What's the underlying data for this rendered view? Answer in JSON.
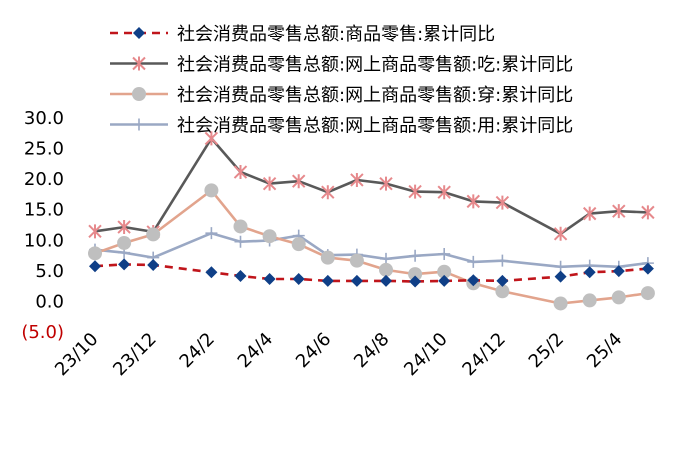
{
  "chart_data": {
    "type": "line",
    "title": "",
    "xlabel": "",
    "ylabel": "",
    "ylim": [
      -5,
      30
    ],
    "yticks": [
      {
        "value": 30,
        "label": "30.0"
      },
      {
        "value": 25,
        "label": "25.0"
      },
      {
        "value": 20,
        "label": "20.0"
      },
      {
        "value": 15,
        "label": "15.0"
      },
      {
        "value": 10,
        "label": "10.0"
      },
      {
        "value": 5,
        "label": "5.0"
      },
      {
        "value": 0,
        "label": "0.0"
      },
      {
        "value": -5,
        "label": "(5.0)"
      }
    ],
    "x": [
      "23/10",
      "23/11",
      "23/12",
      "24/1",
      "24/2",
      "24/3",
      "24/4",
      "24/5",
      "24/6",
      "24/7",
      "24/8",
      "24/9",
      "24/10",
      "24/11",
      "24/12",
      "25/1",
      "25/2",
      "25/3",
      "25/4",
      "25/5"
    ],
    "xtick_labels": [
      "23/10",
      "23/12",
      "24/2",
      "24/4",
      "24/6",
      "24/8",
      "24/10",
      "24/12",
      "25/2",
      "25/4"
    ],
    "grid": false,
    "legend_position": "top",
    "series": [
      {
        "name": "社会消费品零售总额:商品零售:累计同比",
        "color": "#0f3f87",
        "line_color": "#c0151b",
        "dashed": true,
        "marker": "diamond",
        "values": [
          5.6,
          5.9,
          5.8,
          null,
          4.6,
          4.0,
          3.5,
          3.5,
          3.2,
          3.2,
          3.2,
          3.1,
          3.2,
          3.3,
          3.2,
          null,
          3.9,
          4.6,
          4.8,
          5.2
        ]
      },
      {
        "name": "社会消费品零售总额:网上商品零售额:吃:累计同比",
        "color": "#e6898c",
        "line_color": "#595959",
        "dashed": false,
        "marker": "star",
        "values": [
          11.3,
          12.0,
          11.2,
          null,
          26.5,
          21.0,
          19.1,
          19.5,
          17.7,
          19.7,
          19.1,
          17.8,
          17.7,
          16.2,
          16.0,
          null,
          10.9,
          14.2,
          14.6,
          14.4
        ]
      },
      {
        "name": "社会消费品零售总额:网上商品零售额:穿:累计同比",
        "color": "#bfbfbf",
        "line_color": "#e2a48d",
        "dashed": false,
        "marker": "circle",
        "values": [
          7.7,
          9.4,
          10.8,
          null,
          18.0,
          12.1,
          10.5,
          9.2,
          7.0,
          6.5,
          5.0,
          4.3,
          4.7,
          2.8,
          1.5,
          null,
          -0.5,
          0.0,
          0.5,
          1.2
        ]
      },
      {
        "name": "社会消费品零售总额:网上商品零售额:用:累计同比",
        "color": "#9aa8c4",
        "line_color": "#9aa8c4",
        "dashed": false,
        "marker": "plus",
        "values": [
          8.3,
          7.8,
          7.0,
          null,
          11.0,
          9.6,
          9.8,
          10.6,
          7.4,
          7.5,
          6.8,
          7.3,
          7.6,
          6.3,
          6.5,
          null,
          5.5,
          5.7,
          5.5,
          6.1
        ]
      }
    ]
  }
}
